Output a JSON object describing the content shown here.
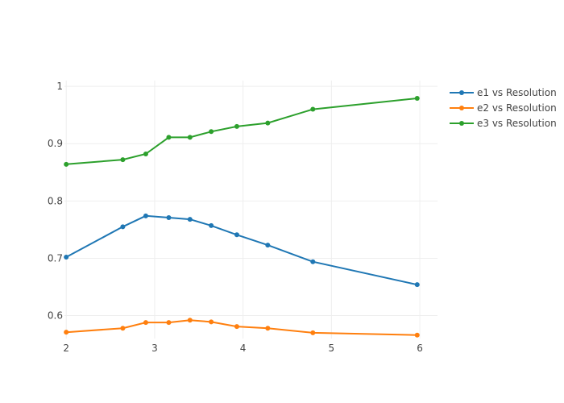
{
  "chart_data": {
    "type": "line",
    "title": "",
    "xlabel": "",
    "ylabel": "",
    "xlim": [
      1.98,
      6.2
    ],
    "ylim": [
      0.56,
      1.01
    ],
    "x_ticks": [
      "2",
      "3",
      "4",
      "5",
      "6"
    ],
    "y_ticks": [
      "0.6",
      "0.7",
      "0.8",
      "0.9",
      "1"
    ],
    "grid": true,
    "legend_position": "top-right",
    "series": [
      {
        "name": "e1 vs Resolution",
        "color": "#1f77b4",
        "x": [
          2.0,
          2.64,
          2.9,
          3.16,
          3.4,
          3.64,
          3.93,
          4.28,
          4.79,
          5.97
        ],
        "y": [
          0.702,
          0.755,
          0.774,
          0.771,
          0.768,
          0.757,
          0.741,
          0.723,
          0.694,
          0.654
        ]
      },
      {
        "name": "e2 vs Resolution",
        "color": "#ff7f0e",
        "x": [
          2.0,
          2.64,
          2.9,
          3.16,
          3.4,
          3.64,
          3.93,
          4.28,
          4.79,
          5.97
        ],
        "y": [
          0.571,
          0.578,
          0.588,
          0.588,
          0.592,
          0.589,
          0.581,
          0.578,
          0.57,
          0.566
        ]
      },
      {
        "name": "e3 vs Resolution",
        "color": "#2ca02c",
        "x": [
          2.0,
          2.64,
          2.9,
          3.16,
          3.4,
          3.64,
          3.93,
          4.28,
          4.79,
          5.97
        ],
        "y": [
          0.864,
          0.872,
          0.882,
          0.911,
          0.911,
          0.921,
          0.93,
          0.936,
          0.96,
          0.979
        ]
      }
    ]
  }
}
